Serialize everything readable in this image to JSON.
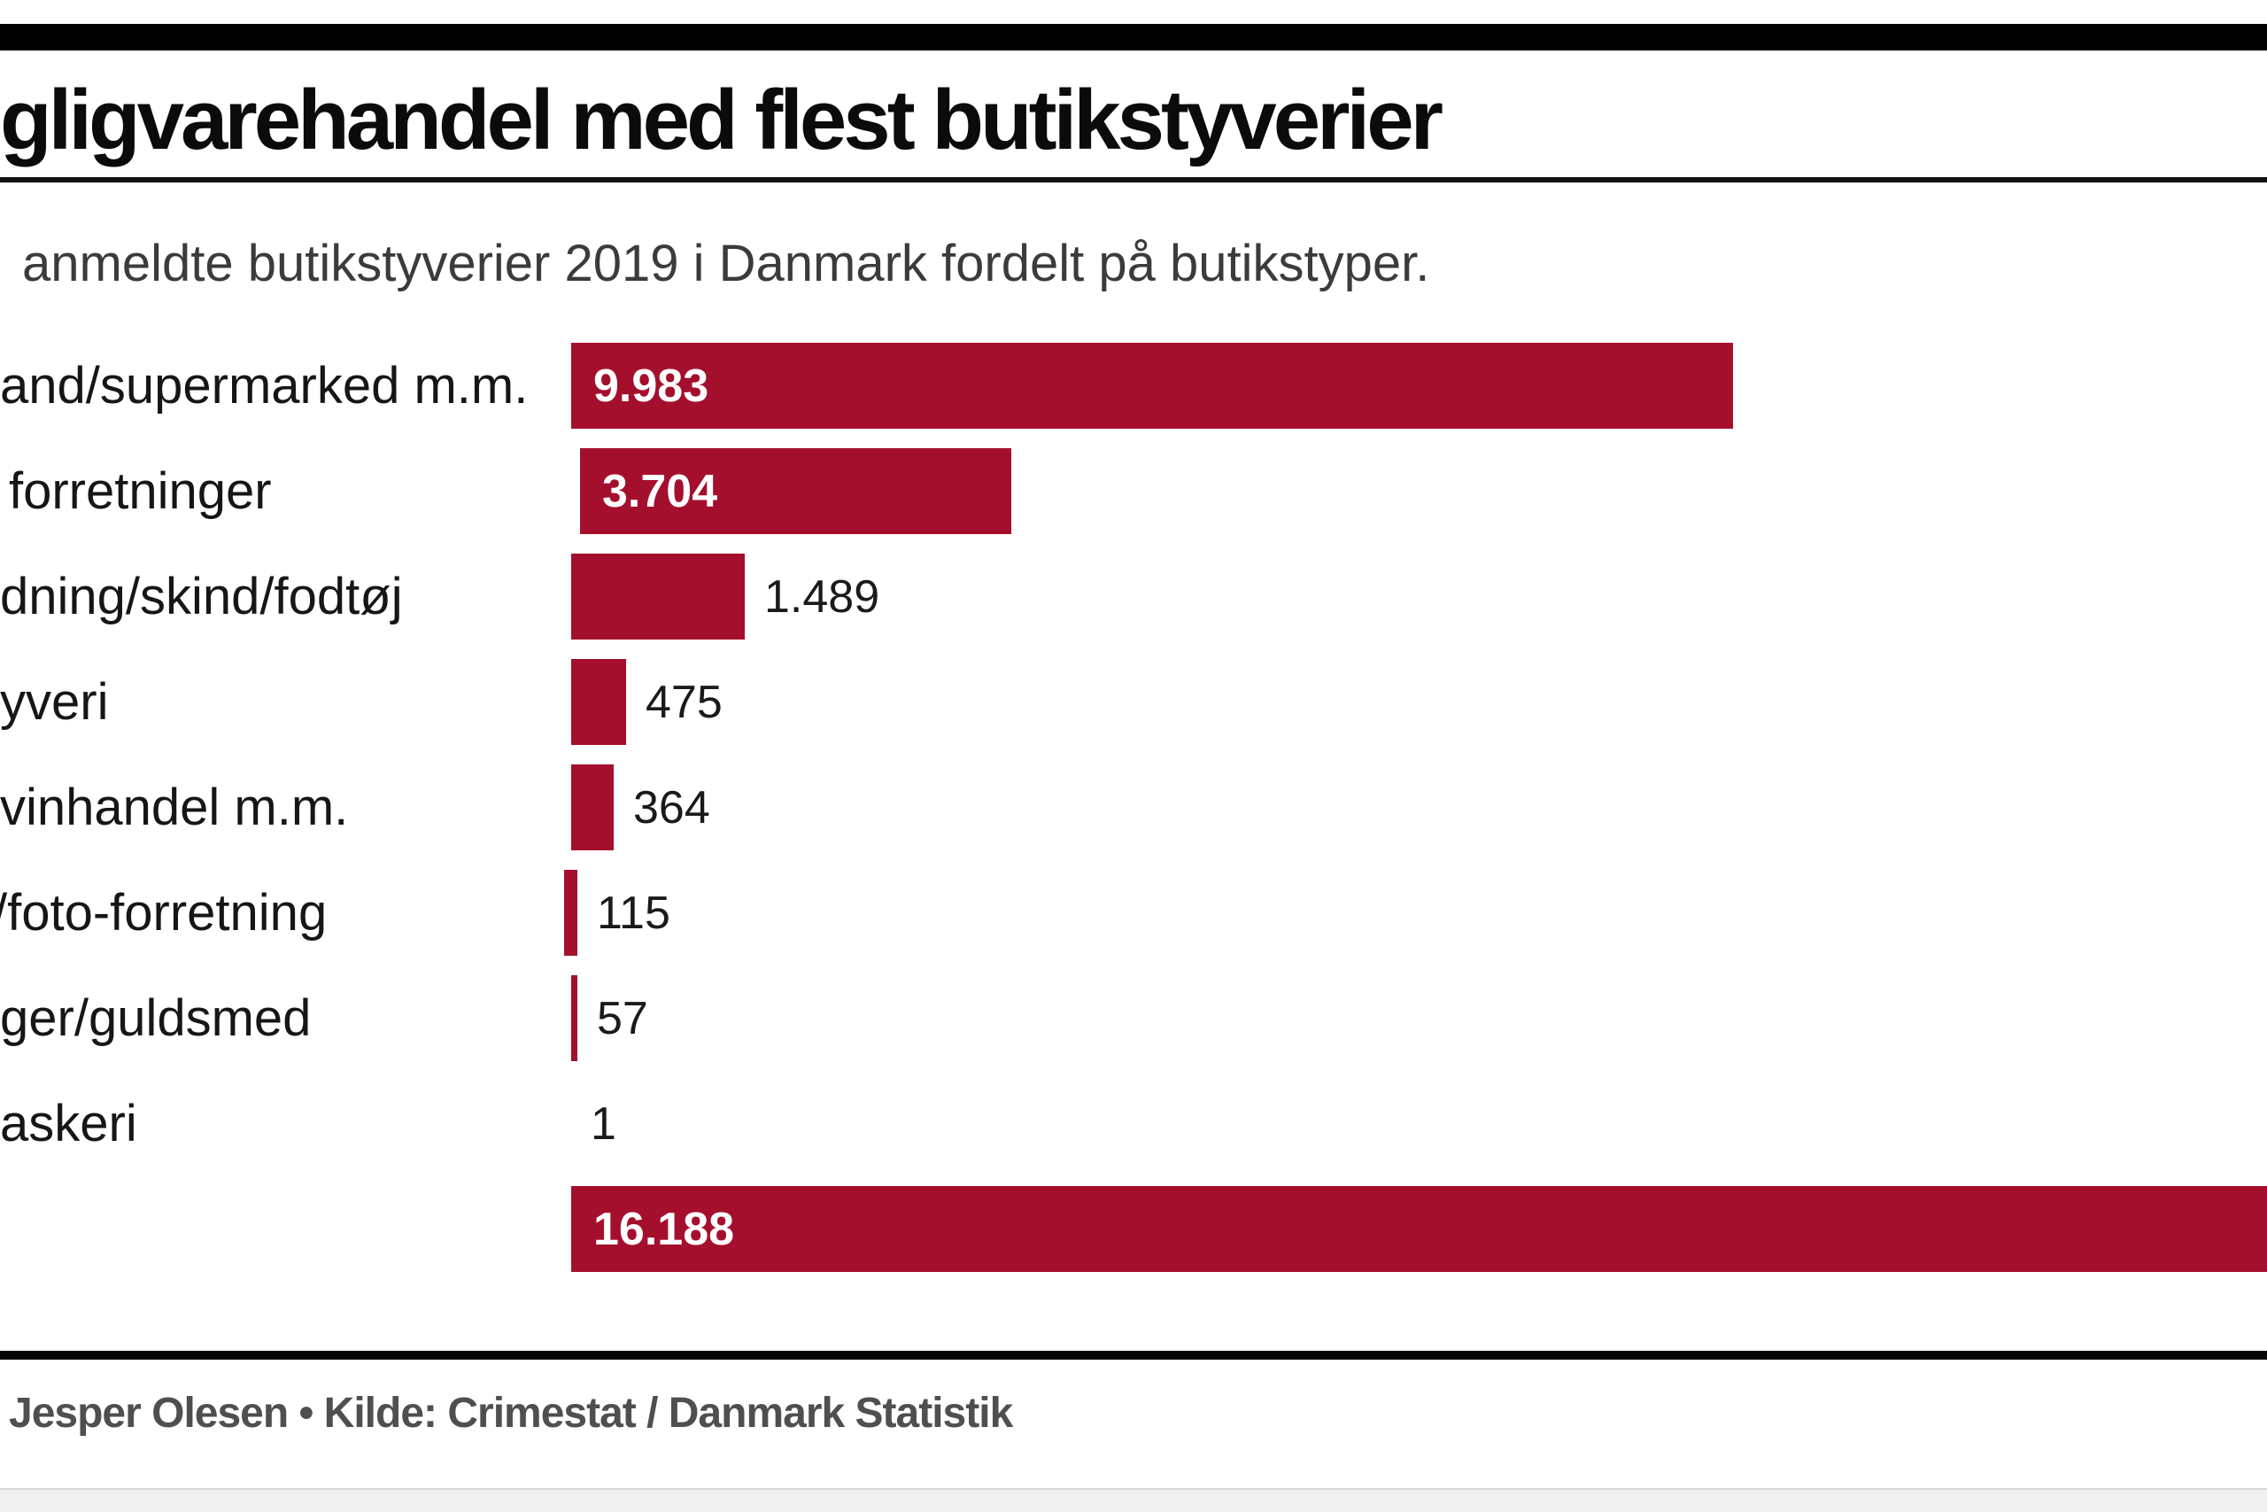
{
  "header": {
    "title": "gligvarehandel med flest butikstyverier",
    "subtitle": "anmeldte butikstyverier 2019 i Danmark fordelt på butikstyper."
  },
  "chart_data": {
    "type": "bar",
    "orientation": "horizontal",
    "title": "gligvarehandel med flest butikstyverier",
    "subtitle": "anmeldte butikstyverier 2019 i Danmark fordelt på butikstyper.",
    "bar_color": "#a50f2e",
    "xlim": [
      0,
      16188
    ],
    "grid": false,
    "legend": false,
    "bars": [
      {
        "label": "and/supermarked m.m.",
        "value": 9983,
        "display": "9.983",
        "value_inside": true
      },
      {
        "label": "forretninger",
        "value": 3704,
        "display": "3.704",
        "value_inside": true
      },
      {
        "label": "dning/skind/fodtøj",
        "value": 1489,
        "display": "1.489",
        "value_inside": false
      },
      {
        "label": "yveri",
        "value": 475,
        "display": "475",
        "value_inside": false
      },
      {
        "label": "vinhandel m.m.",
        "value": 364,
        "display": "364",
        "value_inside": false
      },
      {
        "label": "/foto-forretning",
        "value": 115,
        "display": "115",
        "value_inside": false
      },
      {
        "label": "ger/guldsmed",
        "value": 57,
        "display": "57",
        "value_inside": false
      },
      {
        "label": "askeri",
        "value": 1,
        "display": "1",
        "value_inside": false
      },
      {
        "label": "",
        "value": 16188,
        "display": "16.188",
        "value_inside": true
      }
    ]
  },
  "footer": {
    "credit": "Jesper Olesen • Kilde: Crimestat / Danmark Statistik"
  }
}
